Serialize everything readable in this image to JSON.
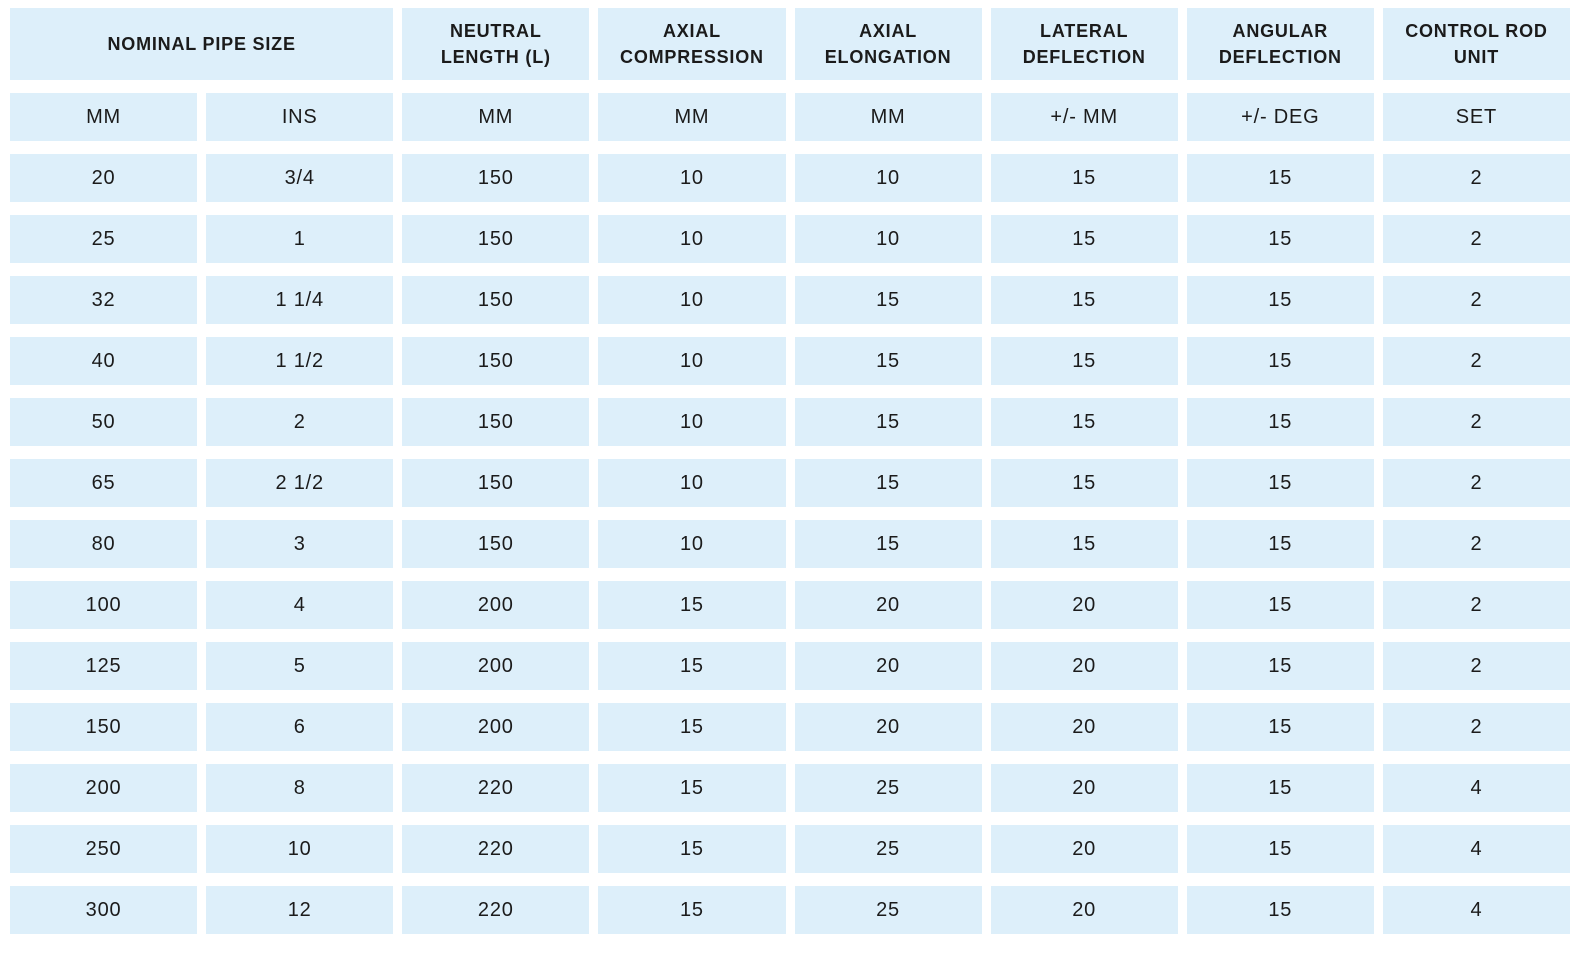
{
  "chart_data": {
    "type": "table",
    "title": "",
    "header_groups": [
      {
        "label": "NOMINAL PIPE SIZE",
        "span": 2
      },
      {
        "label": "NEUTRAL LENGTH (L)",
        "span": 1
      },
      {
        "label": "AXIAL COMPRESSION",
        "span": 1
      },
      {
        "label": "AXIAL ELONGATION",
        "span": 1
      },
      {
        "label": "LATERAL DEFLECTION",
        "span": 1
      },
      {
        "label": "ANGULAR DEFLECTION",
        "span": 1
      },
      {
        "label": "CONTROL ROD UNIT",
        "span": 1
      }
    ],
    "unit_row": [
      "MM",
      "INS",
      "MM",
      "MM",
      "MM",
      "+/- MM",
      "+/- DEG",
      "SET"
    ],
    "rows": [
      [
        "20",
        "3/4",
        "150",
        "10",
        "10",
        "15",
        "15",
        "2"
      ],
      [
        "25",
        "1",
        "150",
        "10",
        "10",
        "15",
        "15",
        "2"
      ],
      [
        "32",
        "1 1/4",
        "150",
        "10",
        "15",
        "15",
        "15",
        "2"
      ],
      [
        "40",
        "1 1/2",
        "150",
        "10",
        "15",
        "15",
        "15",
        "2"
      ],
      [
        "50",
        "2",
        "150",
        "10",
        "15",
        "15",
        "15",
        "2"
      ],
      [
        "65",
        "2 1/2",
        "150",
        "10",
        "15",
        "15",
        "15",
        "2"
      ],
      [
        "80",
        "3",
        "150",
        "10",
        "15",
        "15",
        "15",
        "2"
      ],
      [
        "100",
        "4",
        "200",
        "15",
        "20",
        "20",
        "15",
        "2"
      ],
      [
        "125",
        "5",
        "200",
        "15",
        "20",
        "20",
        "15",
        "2"
      ],
      [
        "150",
        "6",
        "200",
        "15",
        "20",
        "20",
        "15",
        "2"
      ],
      [
        "200",
        "8",
        "220",
        "15",
        "25",
        "20",
        "15",
        "4"
      ],
      [
        "250",
        "10",
        "220",
        "15",
        "25",
        "20",
        "15",
        "4"
      ],
      [
        "300",
        "12",
        "220",
        "15",
        "25",
        "20",
        "15",
        "4"
      ]
    ],
    "layout": {
      "grid": "cells separated by white gutters, no borders",
      "legend": "none",
      "axes": "none"
    },
    "colors": {
      "cell_bg": "#ddeffa",
      "text": "#1b1b1b",
      "page_bg": "#ffffff"
    }
  }
}
